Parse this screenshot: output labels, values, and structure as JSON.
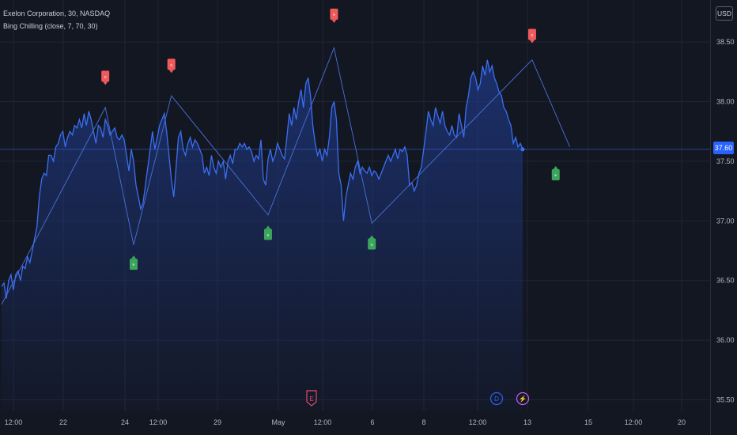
{
  "legend": {
    "symbol": "Exelon Corporation, 30, NASDAQ",
    "indicator": "Bing Chilling (close, 7, 70, 30)"
  },
  "currency_button": "USD",
  "last_price_label": "37.60",
  "colors": {
    "background": "#131722",
    "grid": "#1f2535",
    "price_line": "#3a6ff2",
    "area_fill": "#1f3a8a",
    "zigzag": "#4a70d9",
    "sell_marker": "#f05a5a",
    "buy_marker": "#3ba55c",
    "axis_text": "#b2b5be",
    "last_price_tag": "#2962ff"
  },
  "chart_data": {
    "type": "line",
    "title": "Exelon Corporation, 30, NASDAQ",
    "ylim": [
      35.4,
      38.75
    ],
    "yticks": [
      "38.50",
      "38.00",
      "37.50",
      "37.00",
      "36.50",
      "36.00",
      "35.50"
    ],
    "xticks": [
      "12:00",
      "22",
      "24",
      "12:00",
      "29",
      "May",
      "12:00",
      "6",
      "8",
      "12:00",
      "13",
      "15",
      "12:00",
      "20"
    ],
    "last_price": 37.6,
    "series": [
      {
        "values": [
          36.45,
          36.48,
          36.35,
          36.5,
          36.55,
          36.42,
          36.55,
          36.58,
          36.5,
          36.62,
          36.6,
          36.7,
          36.65,
          36.75,
          36.85,
          36.95,
          37.2,
          37.35,
          37.4,
          37.38,
          37.55,
          37.55,
          37.5,
          37.62,
          37.65,
          37.72,
          37.75,
          37.62,
          37.7,
          37.75,
          37.72,
          37.8,
          37.78,
          37.85,
          37.78,
          37.9,
          37.8,
          37.92,
          37.85,
          37.75,
          37.65,
          37.8,
          37.78,
          37.7,
          37.85,
          37.8,
          37.72,
          37.75,
          37.78,
          37.7,
          37.68,
          37.72,
          37.68,
          37.55,
          37.42,
          37.6,
          37.5,
          37.3,
          37.2,
          37.1,
          37.15,
          37.3,
          37.45,
          37.6,
          37.75,
          37.6,
          37.7,
          37.8,
          37.85,
          37.9,
          37.75,
          37.55,
          37.35,
          37.2,
          37.45,
          37.7,
          37.75,
          37.6,
          37.55,
          37.65,
          37.7,
          37.62,
          37.68,
          37.65,
          37.6,
          37.55,
          37.4,
          37.45,
          37.38,
          37.55,
          37.45,
          37.4,
          37.5,
          37.45,
          37.5,
          37.35,
          37.5,
          37.55,
          37.48,
          37.6,
          37.6,
          37.65,
          37.62,
          37.65,
          37.6,
          37.62,
          37.58,
          37.5,
          37.55,
          37.52,
          37.68,
          37.35,
          37.3,
          37.52,
          37.6,
          37.5,
          37.55,
          37.65,
          37.6,
          37.55,
          37.52,
          37.7,
          37.9,
          37.8,
          37.95,
          37.85,
          38.0,
          38.1,
          37.95,
          38.15,
          38.2,
          38.05,
          37.8,
          37.65,
          37.55,
          37.6,
          37.5,
          37.6,
          37.55,
          37.7,
          37.95,
          38.0,
          37.85,
          37.4,
          37.3,
          37.0,
          37.2,
          37.3,
          37.4,
          37.35,
          37.45,
          37.5,
          37.4,
          37.45,
          37.42,
          37.4,
          37.45,
          37.38,
          37.42,
          37.4,
          37.35,
          37.4,
          37.45,
          37.5,
          37.55,
          37.5,
          37.55,
          37.6,
          37.52,
          37.6,
          37.58,
          37.62,
          37.55,
          37.3,
          37.32,
          37.25,
          37.3,
          37.4,
          37.45,
          37.6,
          37.75,
          37.92,
          37.85,
          37.8,
          37.95,
          37.88,
          37.82,
          37.92,
          37.8,
          37.75,
          37.72,
          37.8,
          37.72,
          37.7,
          37.9,
          37.8,
          37.7,
          37.95,
          38.05,
          38.2,
          38.25,
          38.2,
          38.1,
          38.15,
          38.3,
          38.22,
          38.35,
          38.25,
          38.3,
          38.2,
          38.15,
          38.08,
          38.05,
          37.95,
          37.92,
          37.85,
          37.8,
          37.65,
          37.7,
          37.62,
          37.65,
          37.6
        ]
      }
    ],
    "zigzag": [
      [
        0,
        36.3
      ],
      [
        44,
        37.95
      ],
      [
        56,
        36.8
      ],
      [
        72,
        38.05
      ],
      [
        113,
        37.05
      ],
      [
        141,
        38.45
      ],
      [
        157,
        36.98
      ],
      [
        225,
        38.35
      ],
      [
        241,
        37.62
      ]
    ],
    "signals": [
      {
        "type": "sell",
        "index": 44,
        "price": 38.2,
        "label": "≡"
      },
      {
        "type": "sell",
        "index": 72,
        "price": 38.3,
        "label": "≡"
      },
      {
        "type": "sell",
        "index": 141,
        "price": 38.72,
        "label": "≡"
      },
      {
        "type": "sell",
        "index": 225,
        "price": 38.55,
        "label": "≡"
      },
      {
        "type": "buy",
        "index": 56,
        "price": 36.65,
        "label": "≡"
      },
      {
        "type": "buy",
        "index": 113,
        "price": 36.9,
        "label": "≡"
      },
      {
        "type": "buy",
        "index": 157,
        "price": 36.82,
        "label": "≡"
      },
      {
        "type": "buy",
        "index": 235,
        "price": 37.4,
        "label": "≡"
      }
    ],
    "events": [
      {
        "label": "E",
        "color": "#e24a6a",
        "shape": "shield"
      },
      {
        "label": "D",
        "color": "#2962ff",
        "shape": "circle"
      },
      {
        "label": "⚡",
        "color": "#c25ef5",
        "shape": "circle"
      }
    ]
  }
}
